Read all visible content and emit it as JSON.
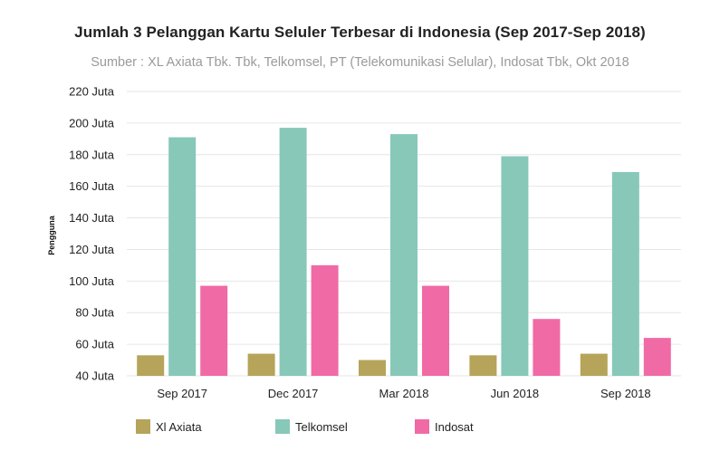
{
  "chart_data": {
    "type": "bar",
    "title": "Jumlah 3 Pelanggan Kartu Seluler Terbesar di Indonesia (Sep 2017-Sep 2018)",
    "subtitle": "Sumber : XL Axiata Tbk. Tbk, Telkomsel, PT (Telekomunikasi Selular), Indosat Tbk, Okt 2018",
    "xlabel": "",
    "ylabel": "Pengguna",
    "categories": [
      "Sep 2017",
      "Dec 2017",
      "Mar 2018",
      "Jun 2018",
      "Sep 2018"
    ],
    "series": [
      {
        "name": "Xl Axiata",
        "color": "#b5a45a",
        "values": [
          53,
          54,
          50,
          53,
          54
        ]
      },
      {
        "name": "Telkomsel",
        "color": "#87c8b9",
        "values": [
          191,
          197,
          193,
          179,
          169
        ]
      },
      {
        "name": "Indosat",
        "color": "#f06aa6",
        "values": [
          97,
          110,
          97,
          76,
          64
        ]
      }
    ],
    "ylim": [
      40,
      220
    ],
    "yticks": [
      40,
      60,
      80,
      100,
      120,
      140,
      160,
      180,
      200,
      220
    ],
    "ytick_suffix": " Juta",
    "grid": true,
    "legend": "bottom-left"
  }
}
